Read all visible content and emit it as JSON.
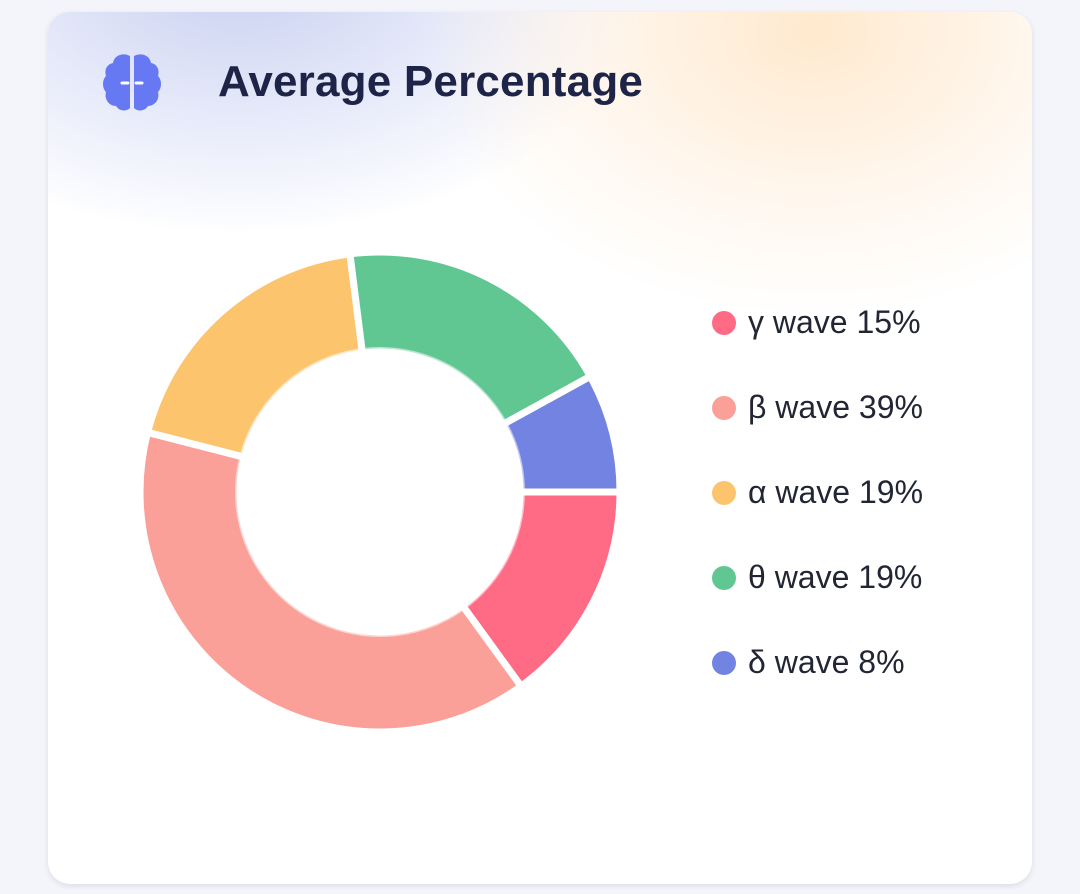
{
  "header": {
    "title": "Average Percentage",
    "icon": "brain-icon",
    "icon_color": "#6678f2"
  },
  "chart_data": {
    "type": "pie",
    "style": "donut",
    "title": "Average Percentage",
    "legend_position": "right",
    "slices": [
      {
        "label": "γ wave 15%",
        "name": "γ wave",
        "value": 15,
        "color": "#ff6a84"
      },
      {
        "label": "β wave 39%",
        "name": "β wave",
        "value": 39,
        "color": "#fba099"
      },
      {
        "label": "α wave 19%",
        "name": "α wave",
        "value": 19,
        "color": "#fdc46e"
      },
      {
        "label": "θ wave 19%",
        "name": "θ wave",
        "value": 19,
        "color": "#60c793"
      },
      {
        "label": "δ wave 8%",
        "name": "δ wave",
        "value": 8,
        "color": "#7383e2"
      }
    ]
  }
}
